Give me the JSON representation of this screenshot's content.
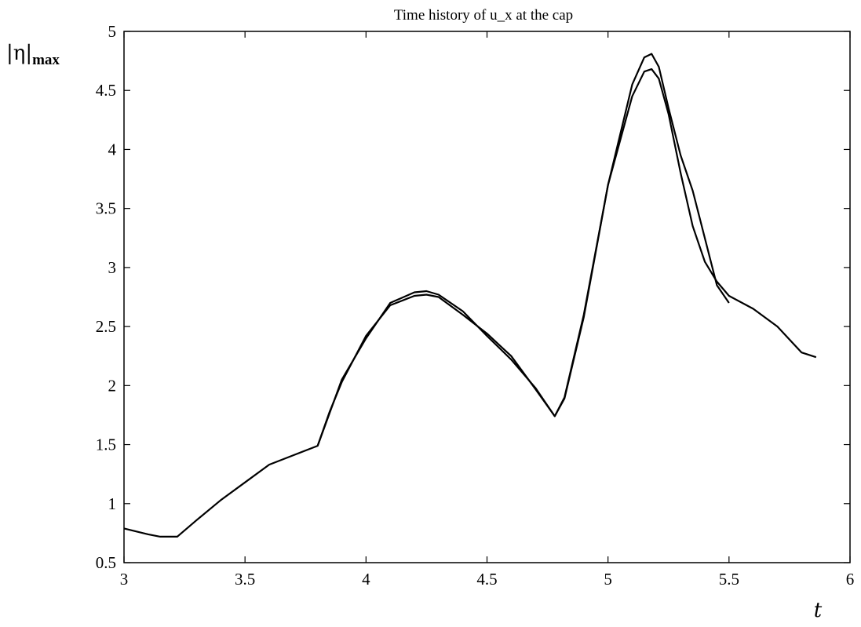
{
  "chart_data": {
    "type": "line",
    "title": "Time history of u_x at the cap",
    "xlabel": "t",
    "ylabel_main": "|η|",
    "ylabel_sub": "max",
    "xlim": [
      3,
      6
    ],
    "ylim": [
      0.5,
      5
    ],
    "xticks": [
      3,
      3.5,
      4,
      4.5,
      5,
      5.5,
      6
    ],
    "xtick_labels": [
      "3",
      "3.5",
      "4",
      "4.5",
      "5",
      "5.5",
      "6"
    ],
    "yticks": [
      0.5,
      1,
      1.5,
      2,
      2.5,
      3,
      3.5,
      4,
      4.5,
      5
    ],
    "ytick_labels": [
      "0.5",
      "1",
      "1.5",
      "2",
      "2.5",
      "3",
      "3.5",
      "4",
      "4.5",
      "5"
    ],
    "grid": false,
    "series": [
      {
        "x": [
          3.0,
          3.1,
          3.15,
          3.22,
          3.3,
          3.4,
          3.5,
          3.6,
          3.7,
          3.8,
          3.85,
          3.9,
          4.0,
          4.1,
          4.2,
          4.25,
          4.3,
          4.4,
          4.5,
          4.6,
          4.7,
          4.78,
          4.82,
          4.9,
          5.0,
          5.1,
          5.15,
          5.18,
          5.21,
          5.25,
          5.3,
          5.35,
          5.4,
          5.45,
          5.5,
          5.6,
          5.7,
          5.8,
          5.86
        ],
        "y": [
          0.79,
          0.74,
          0.72,
          0.72,
          0.86,
          1.03,
          1.18,
          1.33,
          1.41,
          1.49,
          1.78,
          2.03,
          2.42,
          2.68,
          2.76,
          2.77,
          2.75,
          2.6,
          2.44,
          2.25,
          1.97,
          1.74,
          1.89,
          2.58,
          3.7,
          4.45,
          4.66,
          4.68,
          4.6,
          4.3,
          3.8,
          3.35,
          3.05,
          2.88,
          2.76,
          2.65,
          2.5,
          2.28,
          2.24
        ]
      },
      {
        "x": [
          3.8,
          3.9,
          4.0,
          4.1,
          4.2,
          4.25,
          4.3,
          4.4,
          4.5,
          4.6,
          4.7,
          4.78,
          4.82,
          4.9,
          5.0,
          5.1,
          5.15,
          5.18,
          5.21,
          5.25,
          5.3,
          5.35,
          5.4,
          5.45,
          5.5
        ],
        "y": [
          1.49,
          2.05,
          2.4,
          2.7,
          2.79,
          2.8,
          2.77,
          2.63,
          2.42,
          2.22,
          1.98,
          1.74,
          1.9,
          2.6,
          3.7,
          4.55,
          4.78,
          4.81,
          4.7,
          4.35,
          3.95,
          3.65,
          3.25,
          2.85,
          2.7
        ]
      }
    ]
  }
}
